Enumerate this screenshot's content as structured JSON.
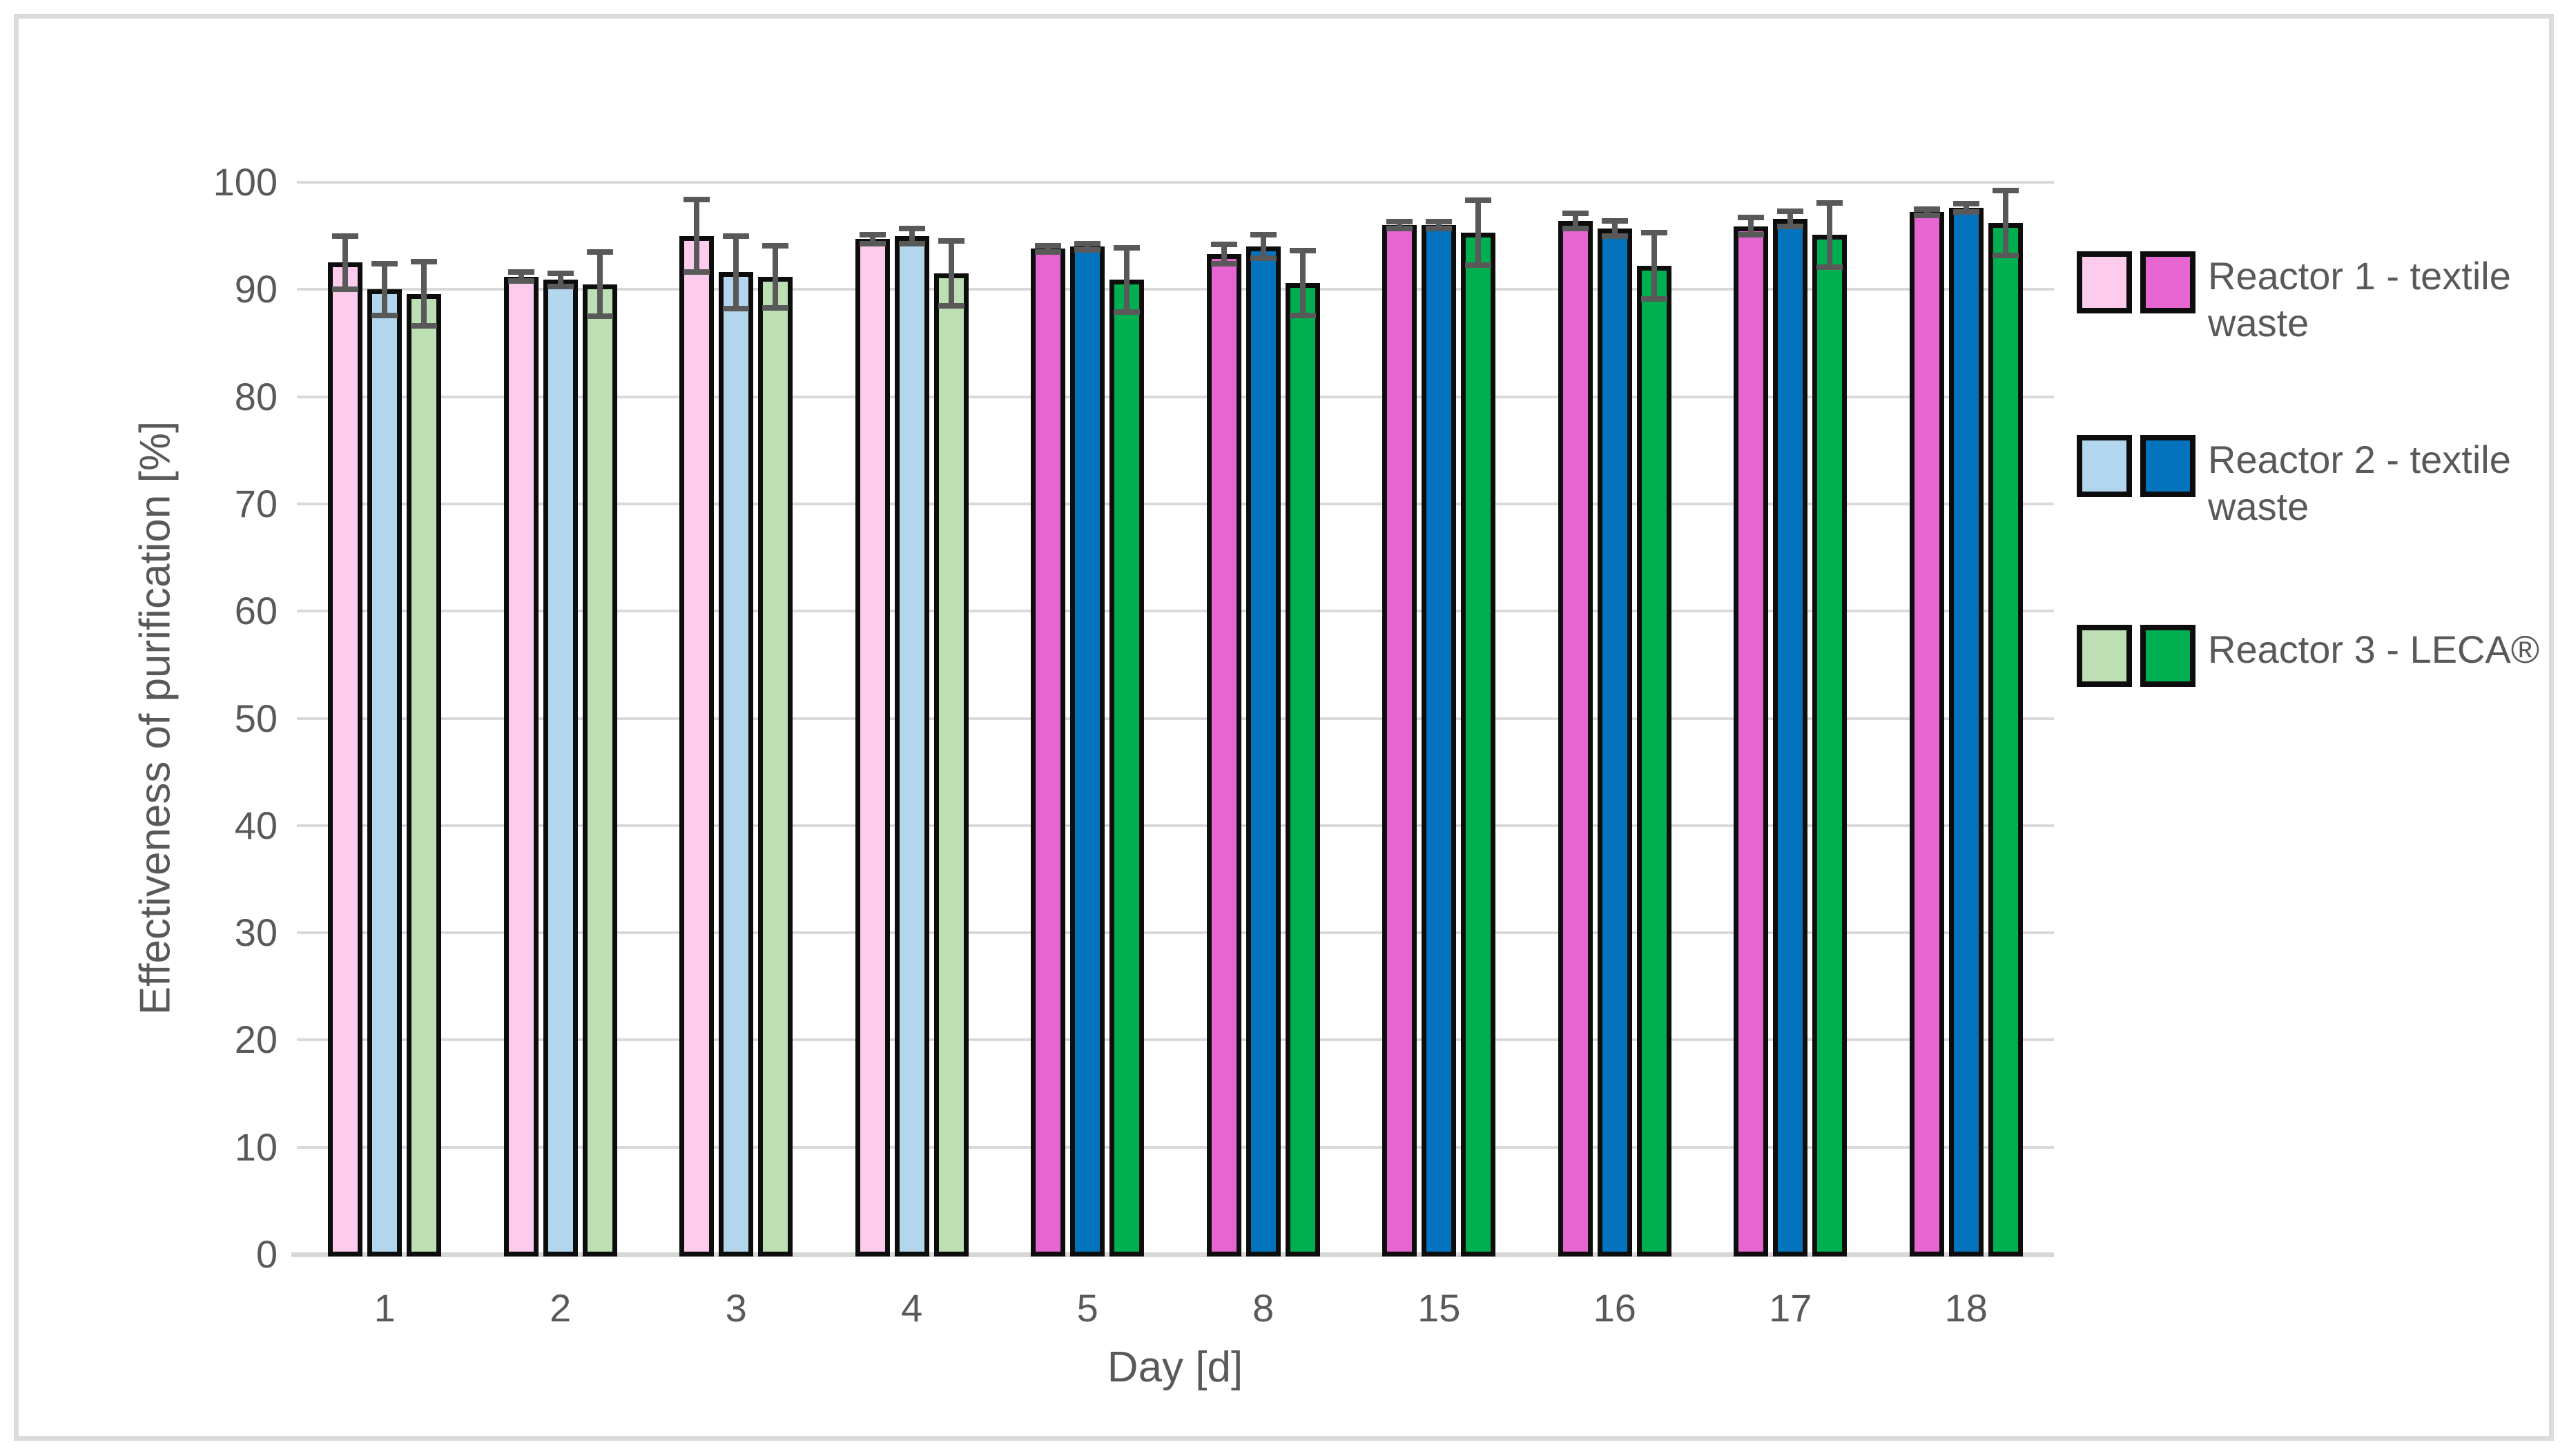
{
  "chart_data": {
    "type": "bar",
    "title": "",
    "xlabel": "Day [d]",
    "ylabel": "Effectiveness of purification [%]",
    "ylim": [
      0,
      100
    ],
    "ytick_step": 10,
    "grid": true,
    "legend_position": "right",
    "categories": [
      "1",
      "2",
      "3",
      "4",
      "5",
      "8",
      "15",
      "16",
      "17",
      "18"
    ],
    "light_shade_categories": [
      "1",
      "2",
      "3",
      "4"
    ],
    "series": [
      {
        "name": "Reactor 1 - textile waste",
        "light_color": "#FDCBEC",
        "dark_color": "#E665D0",
        "values": [
          92.5,
          91.2,
          95.0,
          94.7,
          93.8,
          93.3,
          96.0,
          96.4,
          95.9,
          97.2
        ],
        "errors": [
          2.5,
          0.4,
          3.4,
          0.4,
          0.3,
          0.9,
          0.3,
          0.7,
          0.8,
          0.3
        ]
      },
      {
        "name": "Reactor 2 - textile waste",
        "light_color": "#B3D6EF",
        "dark_color": "#0273BC",
        "values": [
          90.0,
          90.9,
          91.6,
          95.0,
          94.0,
          94.0,
          96.0,
          95.7,
          96.6,
          97.6
        ],
        "errors": [
          2.4,
          0.6,
          3.4,
          0.7,
          0.3,
          1.1,
          0.3,
          0.7,
          0.7,
          0.4
        ]
      },
      {
        "name": "Reactor 3 - LECA®",
        "light_color": "#BCE0B3",
        "dark_color": "#00AF4F",
        "values": [
          89.6,
          90.5,
          91.2,
          91.5,
          90.9,
          90.6,
          95.3,
          92.2,
          95.1,
          96.2
        ],
        "errors": [
          3.0,
          3.0,
          2.9,
          3.0,
          3.0,
          3.0,
          3.0,
          3.1,
          3.0,
          3.0
        ]
      }
    ]
  },
  "colors": {
    "background": "#FFFFFF",
    "frame_border": "#DBDBDB",
    "gridline": "#D9D9D9",
    "axis_text": "#595959",
    "bar_border": "#0D0D0D",
    "error_bar": "#595959"
  }
}
